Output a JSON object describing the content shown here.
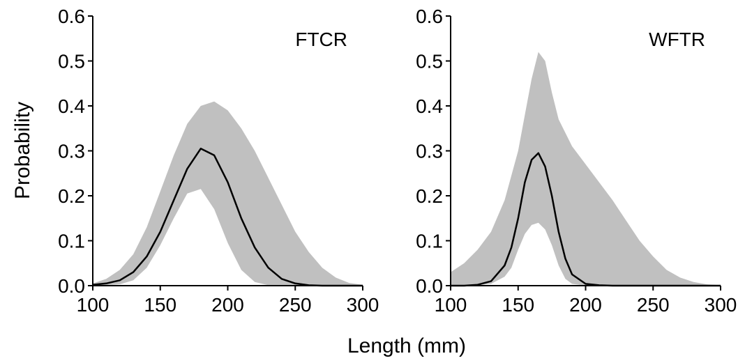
{
  "chart_data": [
    {
      "type": "area",
      "panel_label": "FTCR",
      "x_ticks": [
        100,
        150,
        200,
        250,
        300
      ],
      "y_ticks": [
        "0.0",
        "0.1",
        "0.2",
        "0.3",
        "0.4",
        "0.5",
        "0.6"
      ],
      "xlim": [
        100,
        300
      ],
      "ylim": [
        0,
        0.6
      ],
      "grid": false,
      "series": [
        {
          "role": "mean",
          "x": [
            100,
            110,
            120,
            130,
            140,
            150,
            160,
            170,
            180,
            190,
            200,
            210,
            220,
            230,
            240,
            250,
            260,
            270,
            280,
            290,
            300
          ],
          "y": [
            0.002,
            0.005,
            0.012,
            0.03,
            0.065,
            0.12,
            0.19,
            0.26,
            0.305,
            0.29,
            0.23,
            0.15,
            0.085,
            0.04,
            0.015,
            0.005,
            0.001,
            0.0,
            0.0,
            0.0,
            0.0
          ]
        },
        {
          "role": "upper",
          "x": [
            100,
            110,
            120,
            130,
            140,
            150,
            160,
            170,
            180,
            190,
            200,
            210,
            220,
            230,
            240,
            250,
            260,
            270,
            280,
            290,
            300
          ],
          "y": [
            0.005,
            0.015,
            0.035,
            0.07,
            0.13,
            0.21,
            0.29,
            0.36,
            0.4,
            0.41,
            0.39,
            0.35,
            0.3,
            0.24,
            0.18,
            0.12,
            0.075,
            0.04,
            0.018,
            0.006,
            0.002
          ]
        },
        {
          "role": "lower",
          "x": [
            100,
            110,
            120,
            130,
            140,
            150,
            160,
            170,
            180,
            190,
            200,
            210,
            220,
            230,
            240,
            250,
            260,
            270,
            280,
            290,
            300
          ],
          "y": [
            0.0,
            0.001,
            0.003,
            0.012,
            0.04,
            0.09,
            0.15,
            0.205,
            0.215,
            0.17,
            0.095,
            0.035,
            0.008,
            0.001,
            0.0,
            0.0,
            0.0,
            0.0,
            0.0,
            0.0,
            0.0
          ]
        }
      ]
    },
    {
      "type": "area",
      "panel_label": "WFTR",
      "x_ticks": [
        100,
        150,
        200,
        250,
        300
      ],
      "y_ticks": [
        "0.0",
        "0.1",
        "0.2",
        "0.3",
        "0.4",
        "0.5",
        "0.6"
      ],
      "xlim": [
        100,
        300
      ],
      "ylim": [
        0,
        0.6
      ],
      "grid": false,
      "series": [
        {
          "role": "mean",
          "x": [
            100,
            110,
            120,
            130,
            140,
            145,
            150,
            155,
            160,
            165,
            170,
            175,
            180,
            185,
            190,
            200,
            210,
            220,
            230,
            300
          ],
          "y": [
            0.0,
            0.0,
            0.002,
            0.01,
            0.045,
            0.085,
            0.15,
            0.23,
            0.28,
            0.295,
            0.265,
            0.2,
            0.12,
            0.06,
            0.025,
            0.004,
            0.001,
            0.0,
            0.0,
            0.0
          ]
        },
        {
          "role": "upper",
          "x": [
            100,
            110,
            120,
            130,
            140,
            150,
            155,
            160,
            165,
            170,
            175,
            180,
            190,
            200,
            210,
            220,
            230,
            240,
            250,
            260,
            270,
            280,
            290,
            300
          ],
          "y": [
            0.03,
            0.05,
            0.08,
            0.12,
            0.19,
            0.3,
            0.38,
            0.46,
            0.52,
            0.5,
            0.43,
            0.37,
            0.31,
            0.27,
            0.23,
            0.19,
            0.145,
            0.1,
            0.065,
            0.035,
            0.018,
            0.008,
            0.003,
            0.001
          ]
        },
        {
          "role": "lower",
          "x": [
            100,
            110,
            120,
            130,
            140,
            145,
            150,
            155,
            160,
            165,
            170,
            175,
            180,
            185,
            190,
            200,
            300
          ],
          "y": [
            0.0,
            0.0,
            0.001,
            0.004,
            0.02,
            0.04,
            0.08,
            0.115,
            0.135,
            0.14,
            0.125,
            0.09,
            0.045,
            0.015,
            0.004,
            0.0,
            0.0
          ]
        }
      ]
    }
  ],
  "axes": {
    "ylabel": "Probability",
    "xlabel": "Length (mm)"
  }
}
